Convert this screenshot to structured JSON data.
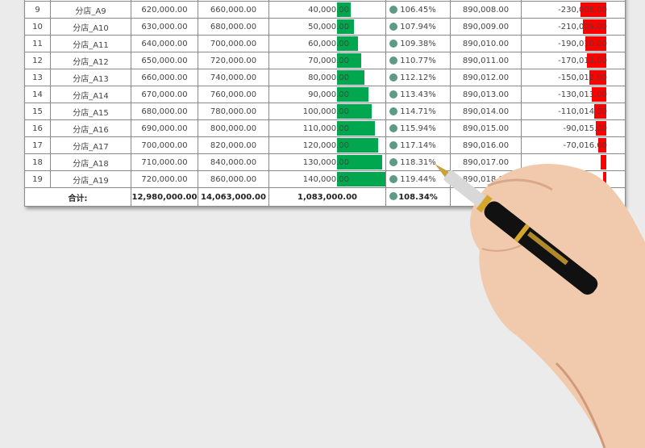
{
  "colors": {
    "positive_bar": "#00a74f",
    "negative_bar": "#ff0000",
    "status_dot": "#5f9a85"
  },
  "rows": [
    {
      "no": "9",
      "store": "分店_A9",
      "target": "620,000.00",
      "actual": "660,000.00",
      "gap": "40,000.00",
      "gap_value": 40000,
      "rate": "106.45%",
      "ref": "890,008.00",
      "diff": "-230,008.00",
      "diff_value": -230008
    },
    {
      "no": "10",
      "store": "分店_A10",
      "target": "630,000.00",
      "actual": "680,000.00",
      "gap": "50,000.00",
      "gap_value": 50000,
      "rate": "107.94%",
      "ref": "890,009.00",
      "diff": "-210,009.00",
      "diff_value": -210009
    },
    {
      "no": "11",
      "store": "分店_A11",
      "target": "640,000.00",
      "actual": "700,000.00",
      "gap": "60,000.00",
      "gap_value": 60000,
      "rate": "109.38%",
      "ref": "890,010.00",
      "diff": "-190,010.00",
      "diff_value": -190010
    },
    {
      "no": "12",
      "store": "分店_A12",
      "target": "650,000.00",
      "actual": "720,000.00",
      "gap": "70,000.00",
      "gap_value": 70000,
      "rate": "110.77%",
      "ref": "890,011.00",
      "diff": "-170,011.00",
      "diff_value": -170011
    },
    {
      "no": "13",
      "store": "分店_A13",
      "target": "660,000.00",
      "actual": "740,000.00",
      "gap": "80,000.00",
      "gap_value": 80000,
      "rate": "112.12%",
      "ref": "890,012.00",
      "diff": "-150,012.00",
      "diff_value": -150012
    },
    {
      "no": "14",
      "store": "分店_A14",
      "target": "670,000.00",
      "actual": "760,000.00",
      "gap": "90,000.00",
      "gap_value": 90000,
      "rate": "113.43%",
      "ref": "890,013.00",
      "diff": "-130,013.00",
      "diff_value": -130013
    },
    {
      "no": "15",
      "store": "分店_A15",
      "target": "680,000.00",
      "actual": "780,000.00",
      "gap": "100,000.00",
      "gap_value": 100000,
      "rate": "114.71%",
      "ref": "890,014.00",
      "diff": "-110,014.00",
      "diff_value": -110014
    },
    {
      "no": "16",
      "store": "分店_A16",
      "target": "690,000.00",
      "actual": "800,000.00",
      "gap": "110,000.00",
      "gap_value": 110000,
      "rate": "115.94%",
      "ref": "890,015.00",
      "diff": "-90,015.00",
      "diff_value": -90015
    },
    {
      "no": "17",
      "store": "分店_A17",
      "target": "700,000.00",
      "actual": "820,000.00",
      "gap": "120,000.00",
      "gap_value": 120000,
      "rate": "117.14%",
      "ref": "890,016.00",
      "diff": "-70,016.00",
      "diff_value": -70016
    },
    {
      "no": "18",
      "store": "分店_A18",
      "target": "710,000.00",
      "actual": "840,000.00",
      "gap": "130,000.00",
      "gap_value": 130000,
      "rate": "118.31%",
      "ref": "890,017.00",
      "diff": "",
      "diff_value": -50017
    },
    {
      "no": "19",
      "store": "分店_A19",
      "target": "720,000.00",
      "actual": "860,000.00",
      "gap": "140,000.00",
      "gap_value": 140000,
      "rate": "119.44%",
      "ref": "890,018.00",
      "diff": "",
      "diff_value": -30018
    }
  ],
  "total": {
    "label": "合计:",
    "target": "12,980,000.00",
    "actual": "14,063,000.00",
    "gap": "1,083,000.00",
    "rate": "108.34%"
  }
}
